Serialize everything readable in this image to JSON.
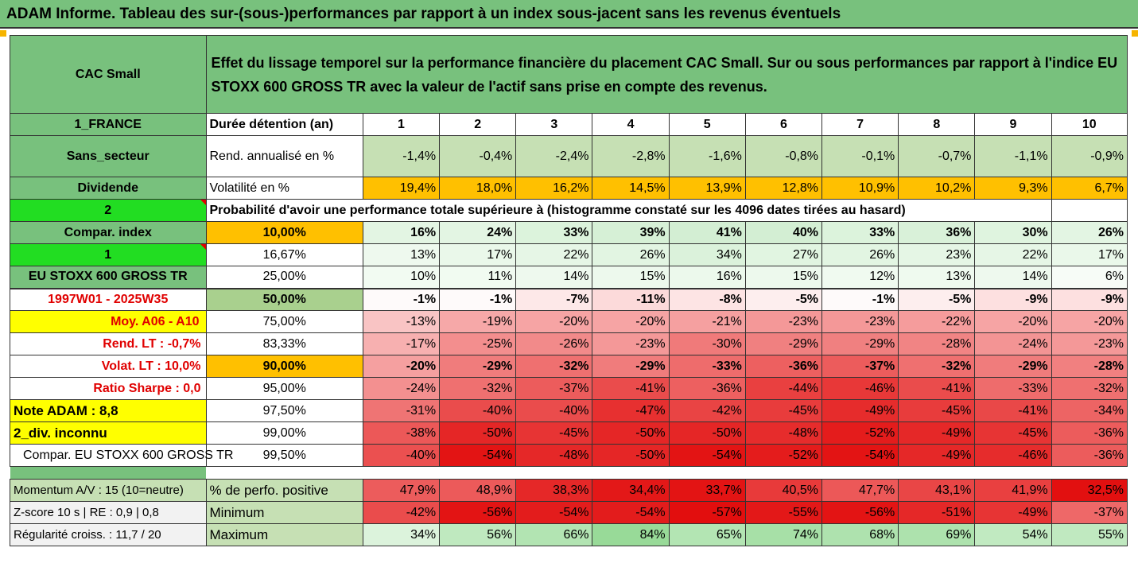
{
  "title": "ADAM Informe. Tableau des sur-(sous-)performances par rapport à un index sous-jacent sans les revenus éventuels",
  "colors": {
    "header_green": "#78c17d",
    "orange": "#ffc000",
    "yellow": "#ffff00",
    "bright_green": "#22dd22"
  },
  "header": {
    "asset": "CAC Small",
    "description_line1": "Effet du lissage temporel sur la performance financière du placement CAC Small. Sur ou sous performances par rapport à l'indice EU",
    "description_line2": "STOXX 600 GROSS TR avec la valeur de l'actif sans prise en compte des revenus."
  },
  "left_labels": {
    "country": "1_FRANCE",
    "sector": "Sans_secteur",
    "dividend": "Dividende",
    "num2": "2",
    "compar_index": "Compar. index",
    "num1": "1",
    "index_name": "EU STOXX 600 GROSS TR",
    "period": "1997W01 - 2025W35",
    "moy": "Moy. A06 - A10",
    "rend_lt": "Rend. LT :   -0,7%",
    "volat_lt": "Volat. LT :   10,0%",
    "sharpe": "Ratio Sharpe :    0,0",
    "note": "Note ADAM : 8,8",
    "div_unknown": "2_div. inconnu",
    "compar_full": "Compar. EU STOXX 600 GROSS TR"
  },
  "duration_label": "Durée détention (an)",
  "years": [
    "1",
    "2",
    "3",
    "4",
    "5",
    "6",
    "7",
    "8",
    "9",
    "10"
  ],
  "rend": {
    "label": "Rend. annualisé en %",
    "values": [
      "-1,4%",
      "-0,4%",
      "-2,4%",
      "-2,8%",
      "-1,6%",
      "-0,8%",
      "-0,1%",
      "-0,7%",
      "-1,1%",
      "-0,9%"
    ]
  },
  "vol": {
    "label": "Volatilité en %",
    "values": [
      "19,4%",
      "18,0%",
      "16,2%",
      "14,5%",
      "13,9%",
      "12,8%",
      "10,9%",
      "10,2%",
      "9,3%",
      "6,7%"
    ]
  },
  "prob_label": "Probabilité d'avoir une performance totale supérieure à (histogramme constaté sur les 4096 dates tirées au hasard)",
  "quantiles": [
    {
      "q": "10,00%",
      "values": [
        "16%",
        "24%",
        "33%",
        "39%",
        "41%",
        "40%",
        "33%",
        "36%",
        "30%",
        "26%"
      ]
    },
    {
      "q": "16,67%",
      "values": [
        "13%",
        "17%",
        "22%",
        "26%",
        "34%",
        "27%",
        "26%",
        "23%",
        "22%",
        "17%"
      ]
    },
    {
      "q": "25,00%",
      "values": [
        "10%",
        "11%",
        "14%",
        "15%",
        "16%",
        "15%",
        "12%",
        "13%",
        "14%",
        "6%"
      ]
    },
    {
      "q": "50,00%",
      "values": [
        "-1%",
        "-1%",
        "-7%",
        "-11%",
        "-8%",
        "-5%",
        "-1%",
        "-5%",
        "-9%",
        "-9%"
      ]
    },
    {
      "q": "75,00%",
      "values": [
        "-13%",
        "-19%",
        "-20%",
        "-20%",
        "-21%",
        "-23%",
        "-23%",
        "-22%",
        "-20%",
        "-20%"
      ]
    },
    {
      "q": "83,33%",
      "values": [
        "-17%",
        "-25%",
        "-26%",
        "-23%",
        "-30%",
        "-29%",
        "-29%",
        "-28%",
        "-24%",
        "-23%"
      ]
    },
    {
      "q": "90,00%",
      "values": [
        "-20%",
        "-29%",
        "-32%",
        "-29%",
        "-33%",
        "-36%",
        "-37%",
        "-32%",
        "-29%",
        "-28%"
      ]
    },
    {
      "q": "95,00%",
      "values": [
        "-24%",
        "-32%",
        "-37%",
        "-41%",
        "-36%",
        "-44%",
        "-46%",
        "-41%",
        "-33%",
        "-32%"
      ]
    },
    {
      "q": "97,50%",
      "values": [
        "-31%",
        "-40%",
        "-40%",
        "-47%",
        "-42%",
        "-45%",
        "-49%",
        "-45%",
        "-41%",
        "-34%"
      ]
    },
    {
      "q": "99,00%",
      "values": [
        "-38%",
        "-50%",
        "-45%",
        "-50%",
        "-50%",
        "-48%",
        "-52%",
        "-49%",
        "-45%",
        "-36%"
      ]
    },
    {
      "q": "99,50%",
      "values": [
        "-40%",
        "-54%",
        "-48%",
        "-50%",
        "-54%",
        "-52%",
        "-54%",
        "-49%",
        "-46%",
        "-36%"
      ]
    }
  ],
  "footer": [
    {
      "left": "Momentum A/V : 15 (10=neutre)",
      "label": "% de perfo. positive",
      "values": [
        "47,9%",
        "48,9%",
        "38,3%",
        "34,4%",
        "33,7%",
        "40,5%",
        "47,7%",
        "43,1%",
        "41,9%",
        "32,5%"
      ]
    },
    {
      "left": "Z-score 10 s  | RE : 0,9 | 0,8",
      "label": "Minimum",
      "values": [
        "-42%",
        "-56%",
        "-54%",
        "-54%",
        "-57%",
        "-55%",
        "-56%",
        "-51%",
        "-49%",
        "-37%"
      ]
    },
    {
      "left": "Régularité croiss. : 11,7 / 20",
      "label": "Maximum",
      "values": [
        "34%",
        "56%",
        "66%",
        "84%",
        "65%",
        "74%",
        "68%",
        "69%",
        "54%",
        "55%"
      ]
    }
  ]
}
